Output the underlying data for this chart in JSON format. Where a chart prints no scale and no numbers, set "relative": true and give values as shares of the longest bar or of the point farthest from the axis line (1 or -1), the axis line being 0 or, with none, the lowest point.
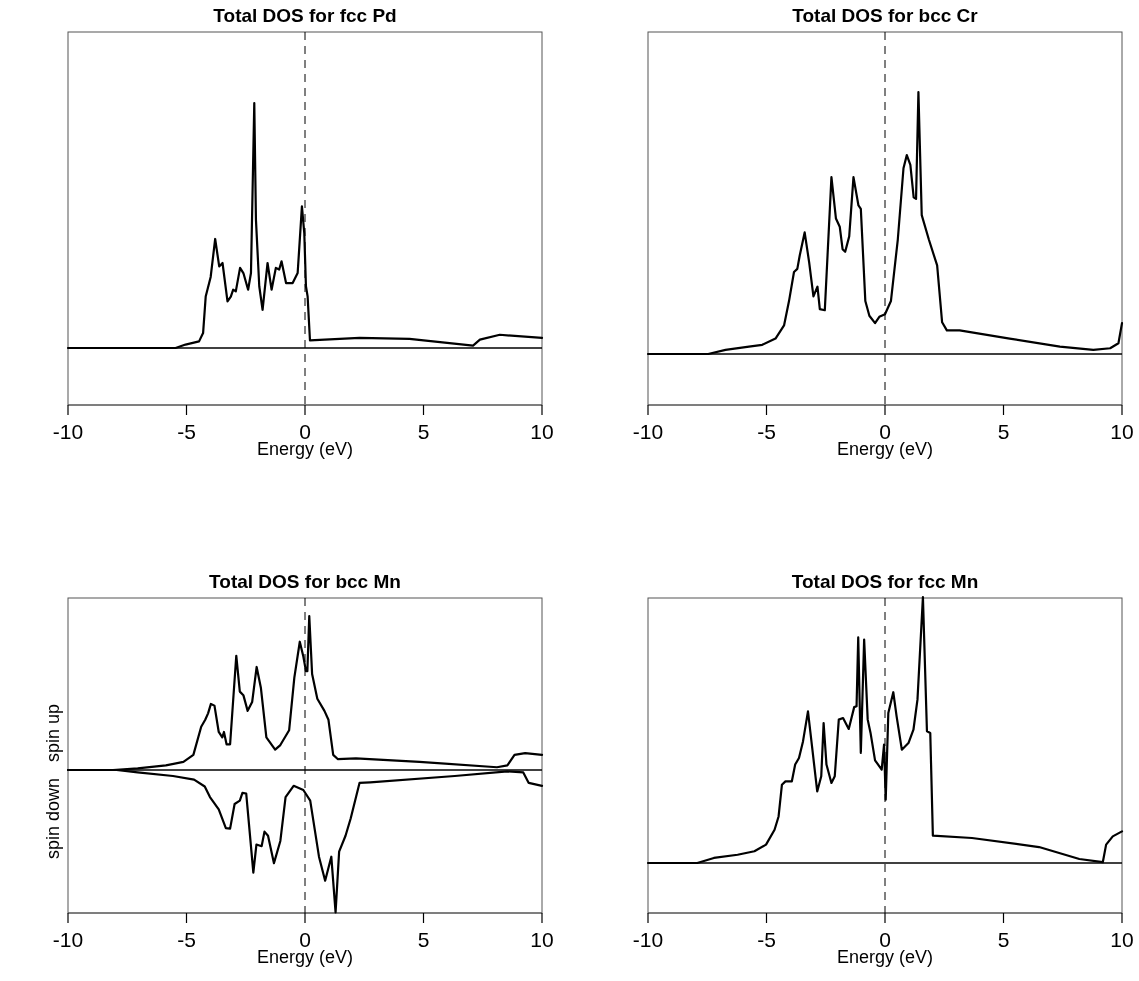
{
  "chart_data": [
    {
      "type": "line",
      "title": "Total DOS for fcc Pd",
      "xlabel": "Energy (eV)",
      "relative": true,
      "xlim": [
        -10,
        10
      ],
      "xticks": [
        -10,
        -5,
        0,
        5,
        10
      ],
      "ref_lines": [
        {
          "axis": "x",
          "value": 0,
          "line_style": "dashed"
        }
      ],
      "series": [
        {
          "color": "#000000",
          "x": [
            -10,
            -5.46,
            -5.04,
            -4.47,
            -4.3,
            -4.19,
            -3.98,
            -3.79,
            -3.62,
            -3.48,
            -3.27,
            -3.13,
            -3.03,
            -2.92,
            -2.74,
            -2.6,
            -2.4,
            -2.28,
            -2.14,
            -2.07,
            -1.93,
            -1.79,
            -1.58,
            -1.41,
            -1.23,
            -1.09,
            -0.99,
            -0.8,
            -0.52,
            -0.31,
            -0.13,
            -0.03,
            0.04,
            0.11,
            0.21,
            2.3,
            4.41,
            7.09,
            7.38,
            8.22,
            10
          ],
          "values": [
            0,
            0,
            0.014,
            0.027,
            0.061,
            0.21,
            0.29,
            0.445,
            0.333,
            0.347,
            0.19,
            0.21,
            0.238,
            0.231,
            0.327,
            0.306,
            0.238,
            0.306,
            1,
            0.524,
            0.252,
            0.156,
            0.347,
            0.238,
            0.327,
            0.32,
            0.354,
            0.265,
            0.265,
            0.306,
            0.578,
            0.469,
            0.252,
            0.211,
            0.031,
            0.041,
            0.037,
            0.01,
            0.034,
            0.054,
            0.041
          ]
        }
      ]
    },
    {
      "type": "line",
      "title": "Total DOS for bcc Cr",
      "xlabel": "Energy (eV)",
      "relative": true,
      "xlim": [
        -10,
        10
      ],
      "xticks": [
        -10,
        -5,
        0,
        5,
        10
      ],
      "ref_lines": [
        {
          "axis": "x",
          "value": 0,
          "line_style": "dashed"
        }
      ],
      "series": [
        {
          "color": "#000000",
          "x": [
            -10,
            -7.46,
            -6.73,
            -5.74,
            -5.18,
            -4.62,
            -4.26,
            -4.05,
            -3.84,
            -3.7,
            -3.6,
            -3.39,
            -3.2,
            -3.02,
            -2.85,
            -2.75,
            -2.54,
            -2.26,
            -2.07,
            -1.91,
            -1.79,
            -1.68,
            -1.51,
            -1.33,
            -1.12,
            -1.02,
            -0.83,
            -0.66,
            -0.42,
            -0.24,
            0,
            0.25,
            0.54,
            0.78,
            0.92,
            1.07,
            1.21,
            1.31,
            1.41,
            1.55,
            1.85,
            2.2,
            2.41,
            2.61,
            3.15,
            5.26,
            7.38,
            8.79,
            9.5,
            9.85,
            10
          ],
          "values": [
            0,
            0,
            0.016,
            0.028,
            0.035,
            0.059,
            0.109,
            0.202,
            0.313,
            0.325,
            0.375,
            0.464,
            0.35,
            0.22,
            0.257,
            0.171,
            0.167,
            0.675,
            0.517,
            0.486,
            0.4,
            0.39,
            0.449,
            0.675,
            0.567,
            0.554,
            0.202,
            0.146,
            0.118,
            0.142,
            0.152,
            0.202,
            0.437,
            0.709,
            0.759,
            0.722,
            0.598,
            0.592,
            1,
            0.53,
            0.437,
            0.338,
            0.121,
            0.09,
            0.09,
            0.059,
            0.028,
            0.016,
            0.022,
            0.041,
            0.118
          ]
        }
      ]
    },
    {
      "type": "line",
      "title": "Total DOS for bcc Mn",
      "xlabel": "Energy (eV)",
      "relative": true,
      "xlim": [
        -10,
        10
      ],
      "xticks": [
        -10,
        -5,
        0,
        5,
        10
      ],
      "ref_lines": [
        {
          "axis": "x",
          "value": 0,
          "line_style": "dashed"
        }
      ],
      "series": [
        {
          "name": "spin up",
          "color": "#000000",
          "x": [
            -10,
            -8.1,
            -7.06,
            -5.87,
            -5.13,
            -4.71,
            -4.38,
            -4.21,
            -4.09,
            -3.97,
            -3.82,
            -3.64,
            -3.49,
            -3.42,
            -3.31,
            -3.16,
            -2.9,
            -2.75,
            -2.6,
            -2.42,
            -2.23,
            -2.04,
            -1.86,
            -1.63,
            -1.26,
            -1.04,
            -0.67,
            -0.45,
            -0.22,
            -0.07,
            0.04,
            0.1,
            0.18,
            0.3,
            0.52,
            0.82,
            0.99,
            1.19,
            1.38,
            2.15,
            4.83,
            8.1,
            8.54,
            8.84,
            9.29,
            10
          ],
          "values": [
            0,
            0,
            0.011,
            0.03,
            0.053,
            0.098,
            0.281,
            0.326,
            0.368,
            0.429,
            0.418,
            0.247,
            0.212,
            0.247,
            0.167,
            0.167,
            0.742,
            0.509,
            0.486,
            0.384,
            0.441,
            0.669,
            0.532,
            0.212,
            0.132,
            0.162,
            0.258,
            0.6,
            0.833,
            0.737,
            0.642,
            0.642,
            1,
            0.623,
            0.463,
            0.384,
            0.326,
            0.098,
            0.071,
            0.075,
            0.053,
            0.018,
            0.03,
            0.098,
            0.11,
            0.098
          ]
        },
        {
          "name": "spin down",
          "color": "#000000",
          "x": [
            -10,
            -7.95,
            -7.06,
            -5.57,
            -4.68,
            -4.23,
            -4.01,
            -3.64,
            -3.34,
            -3.16,
            -2.97,
            -2.75,
            -2.64,
            -2.48,
            -2.18,
            -2.05,
            -1.83,
            -1.71,
            -1.56,
            -1.31,
            -1.04,
            -0.82,
            -0.48,
            -0.07,
            0.22,
            0.59,
            0.85,
            1.11,
            1.29,
            1.44,
            1.71,
            1.93,
            2.3,
            2.75,
            6.32,
            8.54,
            9.21,
            9.44,
            10
          ],
          "values": [
            0,
            0,
            -0.016,
            -0.039,
            -0.062,
            -0.107,
            -0.176,
            -0.256,
            -0.377,
            -0.381,
            -0.221,
            -0.199,
            -0.148,
            -0.153,
            -0.667,
            -0.484,
            -0.495,
            -0.4,
            -0.427,
            -0.605,
            -0.461,
            -0.176,
            -0.103,
            -0.13,
            -0.199,
            -0.563,
            -0.719,
            -0.563,
            -0.925,
            -0.53,
            -0.427,
            -0.313,
            -0.084,
            -0.08,
            -0.039,
            -0.009,
            -0.016,
            -0.084,
            -0.103
          ]
        }
      ]
    },
    {
      "type": "line",
      "title": "Total DOS for fcc Mn",
      "xlabel": "Energy (eV)",
      "relative": true,
      "xlim": [
        -10,
        10
      ],
      "xticks": [
        -10,
        -5,
        0,
        5,
        10
      ],
      "ref_lines": [
        {
          "axis": "x",
          "value": 0,
          "line_style": "dashed"
        }
      ],
      "series": [
        {
          "color": "#000000",
          "x": [
            -10,
            -7.92,
            -7.22,
            -6.22,
            -5.51,
            -5.02,
            -4.66,
            -4.49,
            -4.35,
            -4.2,
            -3.93,
            -3.79,
            -3.63,
            -3.46,
            -3.25,
            -3.08,
            -2.86,
            -2.69,
            -2.59,
            -2.47,
            -2.26,
            -2.12,
            -1.95,
            -1.77,
            -1.53,
            -1.3,
            -1.2,
            -1.13,
            -1.02,
            -0.88,
            -0.73,
            -0.61,
            -0.42,
            -0.14,
            -0.04,
            0.03,
            0.14,
            0.35,
            0.49,
            0.71,
            0.99,
            1.2,
            1.37,
            1.6,
            1.77,
            1.91,
            2.02,
            3.67,
            6.5,
            8.2,
            9.19,
            9.33,
            9.61,
            10
          ],
          "values": [
            0,
            0,
            0.019,
            0.031,
            0.044,
            0.069,
            0.125,
            0.175,
            0.294,
            0.307,
            0.307,
            0.37,
            0.395,
            0.457,
            0.57,
            0.439,
            0.269,
            0.326,
            0.526,
            0.37,
            0.301,
            0.326,
            0.539,
            0.545,
            0.504,
            0.586,
            0.589,
            0.848,
            0.414,
            0.84,
            0.539,
            0.489,
            0.386,
            0.351,
            0.445,
            0.238,
            0.564,
            0.642,
            0.551,
            0.426,
            0.451,
            0.501,
            0.614,
            1,
            0.495,
            0.489,
            0.103,
            0.094,
            0.06,
            0.015,
            0.003,
            0.069,
            0.1,
            0.119
          ]
        }
      ]
    }
  ]
}
